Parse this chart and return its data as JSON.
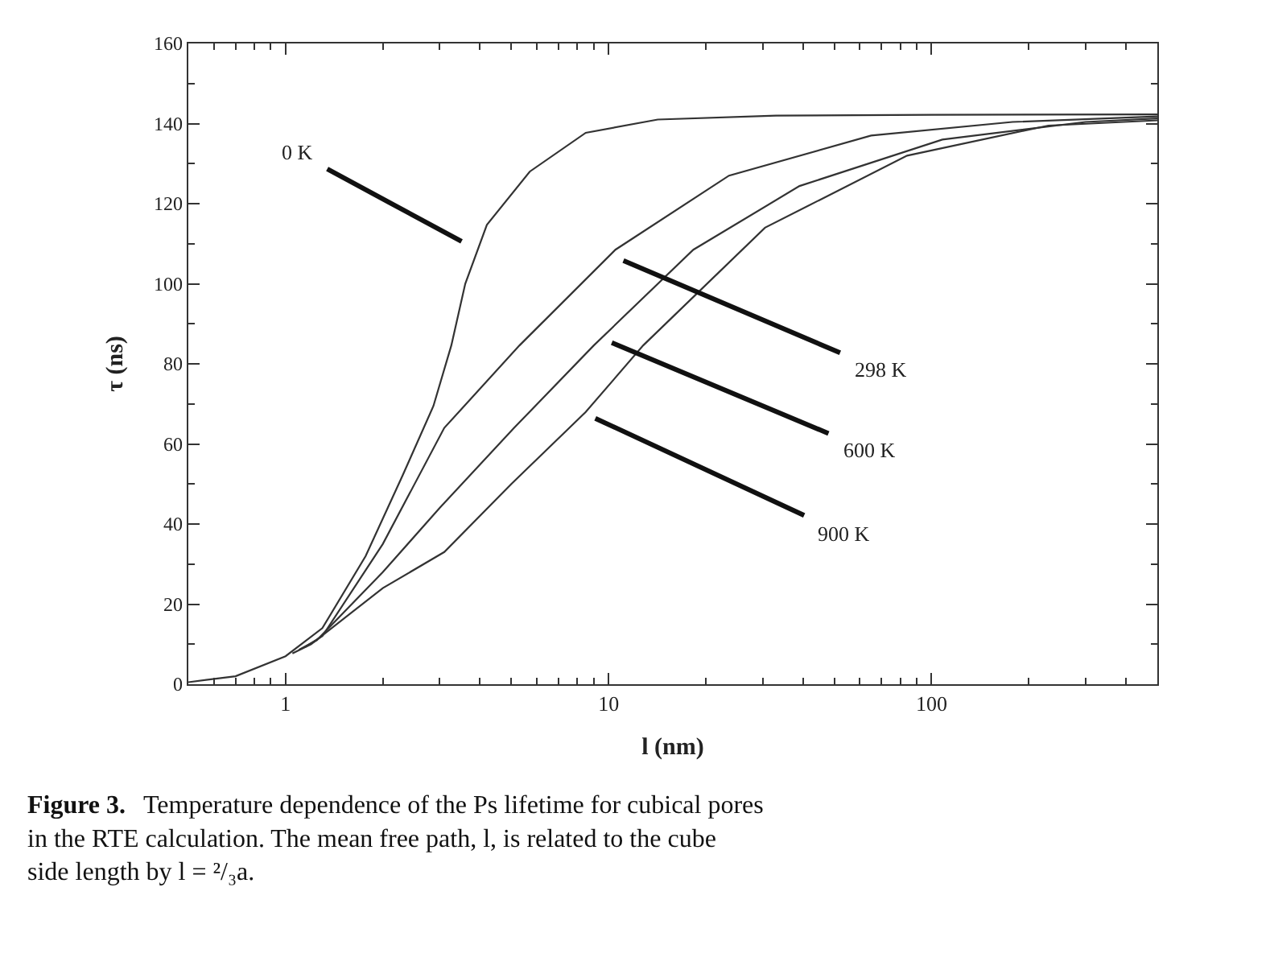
{
  "chart_data": {
    "type": "line",
    "xlabel": "l (nm)",
    "ylabel": "τ (ns)",
    "log": "x",
    "grid": false,
    "marker": "none",
    "line_style": "solid",
    "xlim": [
      0.5,
      500
    ],
    "ylim": [
      0,
      160
    ],
    "xticks": [
      {
        "value": 0.6,
        "label": null
      },
      {
        "value": 0.7,
        "label": null
      },
      {
        "value": 0.8,
        "label": null
      },
      {
        "value": 0.9,
        "label": null
      },
      1,
      {
        "value": 2,
        "label": null
      },
      {
        "value": 3,
        "label": null
      },
      {
        "value": 4,
        "label": null
      },
      {
        "value": 5,
        "label": null
      },
      {
        "value": 6,
        "label": null
      },
      {
        "value": 7,
        "label": null
      },
      {
        "value": 8,
        "label": null
      },
      {
        "value": 9,
        "label": null
      },
      10,
      {
        "value": 20,
        "label": null
      },
      {
        "value": 30,
        "label": null
      },
      {
        "value": 40,
        "label": null
      },
      {
        "value": 50,
        "label": null
      },
      {
        "value": 60,
        "label": null
      },
      {
        "value": 70,
        "label": null
      },
      {
        "value": 80,
        "label": null
      },
      {
        "value": 90,
        "label": null
      },
      100,
      {
        "value": 200,
        "label": null
      },
      {
        "value": 300,
        "label": null
      },
      {
        "value": 400,
        "label": null
      }
    ],
    "yticks": [
      0,
      {
        "value": 10,
        "label": null
      },
      20,
      {
        "value": 30,
        "label": null
      },
      40,
      {
        "value": 50,
        "label": null
      },
      60,
      {
        "value": 70,
        "label": null
      },
      80,
      {
        "value": 90,
        "label": null
      },
      100,
      {
        "value": 110,
        "label": null
      },
      120,
      {
        "value": 130,
        "label": null
      },
      140,
      {
        "value": 150,
        "label": null
      },
      160
    ],
    "series": [
      {
        "color": "#333333",
        "x": [
          0.5,
          0.7,
          1,
          1.3,
          1.77,
          2.3,
          2.87,
          3.26,
          3.6,
          4.2,
          5.7,
          8.5,
          14.2,
          33,
          100,
          500
        ],
        "values": [
          0.5,
          2,
          7,
          14,
          32,
          52,
          69.5,
          84.6,
          100,
          114.7,
          128,
          137.7,
          141,
          142,
          142.2,
          142.3
        ]
      },
      {
        "color": "#333333",
        "x": [
          1.15,
          1.3,
          2,
          3.1,
          5.3,
          10.5,
          23.6,
          65,
          178,
          500
        ],
        "values": [
          9.3,
          12,
          35,
          64,
          84.6,
          108.5,
          127,
          137,
          140.4,
          141.8
        ]
      },
      {
        "color": "#333333",
        "x": [
          1.1,
          1.25,
          2,
          3.0,
          5.1,
          9,
          18.3,
          39,
          108,
          300,
          500
        ],
        "values": [
          8.6,
          11,
          28,
          44,
          64,
          84.6,
          108.5,
          124.4,
          136,
          140.4,
          141.3
        ]
      },
      {
        "color": "#333333",
        "x": [
          1.05,
          1.2,
          2,
          3.1,
          5,
          8.5,
          12.8,
          30.5,
          84,
          230,
          500
        ],
        "values": [
          7.7,
          10,
          24,
          33,
          50,
          68,
          84.6,
          114,
          132,
          139.5,
          140.8
        ]
      }
    ],
    "annotations": [
      "0 K",
      "298 K",
      "600 K",
      "900 K",
      "Figure 3.",
      "Temperature dependence of the Ps lifetime for cubical pores\nin the RTE calculation. The mean free path, l, is related to the cube\nside length by l = ²/₃a."
    ]
  }
}
